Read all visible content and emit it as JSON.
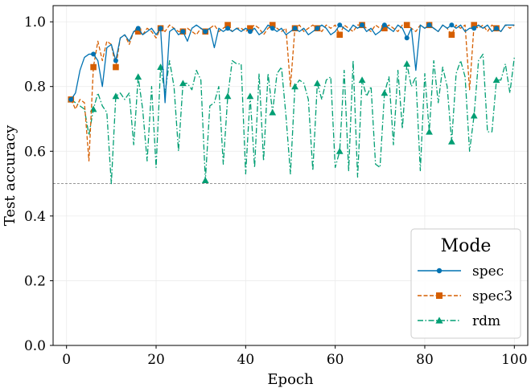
{
  "chart_data": {
    "type": "line",
    "title": "",
    "xlabel": "Epoch",
    "ylabel": "Test accuracy",
    "xlim": [
      -3,
      103
    ],
    "ylim": [
      0.0,
      1.05
    ],
    "x_ticks": [
      0,
      20,
      40,
      60,
      80,
      100
    ],
    "x_tick_labels": [
      "0",
      "20",
      "40",
      "60",
      "80",
      "100"
    ],
    "y_ticks": [
      0.0,
      0.2,
      0.4,
      0.6,
      0.8,
      1.0
    ],
    "y_tick_labels": [
      "0.0",
      "0.2",
      "0.4",
      "0.6",
      "0.8",
      "1.0"
    ],
    "grid": true,
    "reference_line": {
      "y": 0.5,
      "style": "dashed",
      "color": "#888888"
    },
    "legend": {
      "title": "Mode",
      "position": "lower-right"
    },
    "x": [
      1,
      2,
      3,
      4,
      5,
      6,
      7,
      8,
      9,
      10,
      11,
      12,
      13,
      14,
      15,
      16,
      17,
      18,
      19,
      20,
      21,
      22,
      23,
      24,
      25,
      26,
      27,
      28,
      29,
      30,
      31,
      32,
      33,
      34,
      35,
      36,
      37,
      38,
      39,
      40,
      41,
      42,
      43,
      44,
      45,
      46,
      47,
      48,
      49,
      50,
      51,
      52,
      53,
      54,
      55,
      56,
      57,
      58,
      59,
      60,
      61,
      62,
      63,
      64,
      65,
      66,
      67,
      68,
      69,
      70,
      71,
      72,
      73,
      74,
      75,
      76,
      77,
      78,
      79,
      80,
      81,
      82,
      83,
      84,
      85,
      86,
      87,
      88,
      89,
      90,
      91,
      92,
      93,
      94,
      95,
      96,
      97,
      98,
      99,
      100
    ],
    "series": [
      {
        "name": "spec",
        "color": "#0072b2",
        "marker": "circle",
        "dash": "solid",
        "marker_every": 5,
        "values": [
          0.76,
          0.78,
          0.85,
          0.89,
          0.9,
          0.9,
          0.88,
          0.8,
          0.92,
          0.93,
          0.88,
          0.95,
          0.96,
          0.94,
          0.97,
          0.98,
          0.96,
          0.97,
          0.98,
          0.96,
          0.98,
          0.75,
          0.97,
          0.98,
          0.96,
          0.97,
          0.94,
          0.98,
          0.99,
          0.98,
          0.97,
          0.98,
          0.92,
          0.98,
          0.97,
          0.98,
          0.97,
          0.98,
          0.97,
          0.98,
          0.97,
          0.98,
          0.96,
          0.97,
          0.99,
          0.98,
          0.97,
          0.98,
          0.96,
          0.97,
          0.98,
          0.97,
          0.98,
          0.96,
          0.97,
          0.98,
          0.99,
          0.98,
          0.96,
          0.97,
          0.99,
          0.98,
          0.97,
          0.99,
          0.98,
          0.99,
          0.97,
          0.98,
          0.96,
          0.97,
          0.99,
          0.98,
          0.97,
          0.99,
          0.98,
          0.95,
          0.98,
          0.85,
          0.99,
          0.98,
          0.99,
          0.98,
          0.97,
          0.99,
          0.98,
          0.99,
          0.98,
          0.99,
          0.97,
          0.98,
          0.98,
          0.99,
          0.98,
          0.99,
          0.97,
          0.98,
          0.97,
          0.99,
          0.99,
          0.99
        ]
      },
      {
        "name": "spec3",
        "color": "#d55e00",
        "marker": "square",
        "dash": "dashed",
        "marker_every": 5,
        "values": [
          0.76,
          0.73,
          0.76,
          0.75,
          0.57,
          0.86,
          0.94,
          0.88,
          0.94,
          0.93,
          0.86,
          0.95,
          0.96,
          0.93,
          0.97,
          0.97,
          0.96,
          0.98,
          0.97,
          0.95,
          0.98,
          0.97,
          0.99,
          0.98,
          0.97,
          0.97,
          0.98,
          0.97,
          0.96,
          0.98,
          0.97,
          0.98,
          0.99,
          0.97,
          0.98,
          0.99,
          0.97,
          0.98,
          0.98,
          0.97,
          0.98,
          0.99,
          0.98,
          0.96,
          0.98,
          0.99,
          0.98,
          0.97,
          0.98,
          0.8,
          0.98,
          0.99,
          0.97,
          0.98,
          0.99,
          0.98,
          0.97,
          0.99,
          0.98,
          0.99,
          0.96,
          0.99,
          0.98,
          0.97,
          0.99,
          0.99,
          0.98,
          0.97,
          0.99,
          0.98,
          0.98,
          0.99,
          0.98,
          0.97,
          0.99,
          0.99,
          0.98,
          0.97,
          0.99,
          0.98,
          0.99,
          0.98,
          0.97,
          0.99,
          0.98,
          0.96,
          0.99,
          0.98,
          0.99,
          0.79,
          0.99,
          0.98,
          0.99,
          0.97,
          0.99,
          0.98,
          0.97,
          0.99,
          0.98,
          0.99
        ]
      },
      {
        "name": "rdm",
        "color": "#009e73",
        "marker": "triangle",
        "dash": "dashdot",
        "marker_every": 5,
        "values": [
          0.76,
          0.75,
          0.74,
          0.73,
          0.65,
          0.73,
          0.78,
          0.74,
          0.72,
          0.5,
          0.77,
          0.78,
          0.76,
          0.78,
          0.62,
          0.83,
          0.73,
          0.57,
          0.8,
          0.55,
          0.86,
          0.78,
          0.88,
          0.8,
          0.6,
          0.81,
          0.81,
          0.79,
          0.85,
          0.82,
          0.51,
          0.74,
          0.75,
          0.8,
          0.56,
          0.77,
          0.88,
          0.87,
          0.87,
          0.53,
          0.77,
          0.55,
          0.84,
          0.57,
          0.84,
          0.72,
          0.84,
          0.86,
          0.71,
          0.53,
          0.8,
          0.82,
          0.81,
          0.76,
          0.54,
          0.81,
          0.76,
          0.82,
          0.83,
          0.55,
          0.6,
          0.85,
          0.54,
          0.88,
          0.52,
          0.82,
          0.77,
          0.8,
          0.56,
          0.55,
          0.78,
          0.83,
          0.62,
          0.85,
          0.67,
          0.87,
          0.8,
          0.83,
          0.54,
          0.84,
          0.66,
          0.88,
          0.75,
          0.86,
          0.8,
          0.63,
          0.84,
          0.88,
          0.83,
          0.6,
          0.71,
          0.88,
          0.9,
          0.66,
          0.66,
          0.82,
          0.82,
          0.87,
          0.78,
          0.89
        ]
      }
    ]
  }
}
